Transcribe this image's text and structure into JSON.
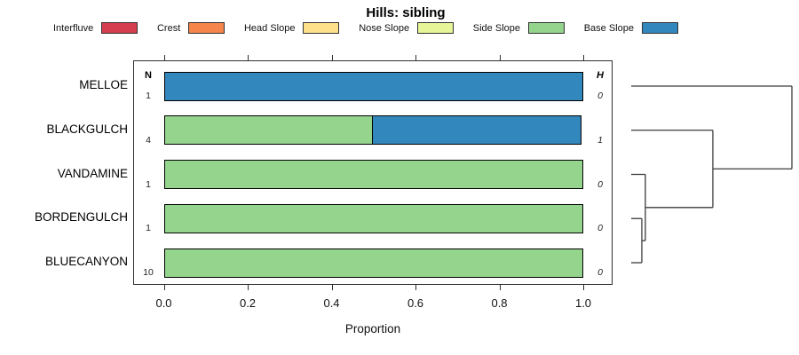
{
  "title": "Hills: sibling",
  "legend": {
    "items": [
      {
        "label": "Interfluve",
        "color": "#D53E4F"
      },
      {
        "label": "Crest",
        "color": "#F6854C"
      },
      {
        "label": "Head Slope",
        "color": "#FEE08B"
      },
      {
        "label": "Nose Slope",
        "color": "#E6F598"
      },
      {
        "label": "Side Slope",
        "color": "#94D48D"
      },
      {
        "label": "Base Slope",
        "color": "#3288BD"
      }
    ]
  },
  "chart_data": {
    "type": "bar",
    "orientation": "horizontal",
    "stacked": true,
    "title": "Hills: sibling",
    "xlabel": "Proportion",
    "xlim": [
      0,
      1
    ],
    "xticks": [
      0.0,
      0.2,
      0.4,
      0.6,
      0.8,
      1.0
    ],
    "xtick_labels": [
      "0.0",
      "0.2",
      "0.4",
      "0.6",
      "0.8",
      "1.0"
    ],
    "grid": false,
    "legend_position": "top",
    "categories": [
      "MELLOE",
      "BLACKGULCH",
      "VANDAMINE",
      "BORDENGULCH",
      "BLUECANYON"
    ],
    "n_column": {
      "header": "N",
      "values": [
        "1",
        "4",
        "1",
        "1",
        "10"
      ]
    },
    "h_column": {
      "header": "H",
      "values": [
        "0",
        "1",
        "0",
        "0",
        "0"
      ]
    },
    "series": [
      {
        "name": "Interfluve",
        "color": "#D53E4F",
        "values": [
          0,
          0,
          0,
          0,
          0
        ]
      },
      {
        "name": "Crest",
        "color": "#F6854C",
        "values": [
          0,
          0,
          0,
          0,
          0
        ]
      },
      {
        "name": "Head Slope",
        "color": "#FEE08B",
        "values": [
          0,
          0,
          0,
          0,
          0
        ]
      },
      {
        "name": "Nose Slope",
        "color": "#E6F598",
        "values": [
          0,
          0,
          0,
          0,
          0
        ]
      },
      {
        "name": "Side Slope",
        "color": "#94D48D",
        "values": [
          0,
          0.5,
          1,
          1,
          1
        ]
      },
      {
        "name": "Base Slope",
        "color": "#3288BD",
        "values": [
          1,
          0.5,
          0,
          0,
          0
        ]
      }
    ],
    "dendrogram": {
      "leaves": [
        "MELLOE",
        "BLACKGULCH",
        "VANDAMINE",
        "BORDENGULCH",
        "BLUECANYON"
      ],
      "merges": [
        {
          "children": [
            "L3",
            "L4"
          ],
          "height": 0.066
        },
        {
          "children": [
            "M0",
            "L2"
          ],
          "height": 0.088
        },
        {
          "children": [
            "M1",
            "L1"
          ],
          "height": 0.508
        },
        {
          "children": [
            "M2",
            "L0"
          ],
          "height": 1.0
        }
      ]
    }
  }
}
